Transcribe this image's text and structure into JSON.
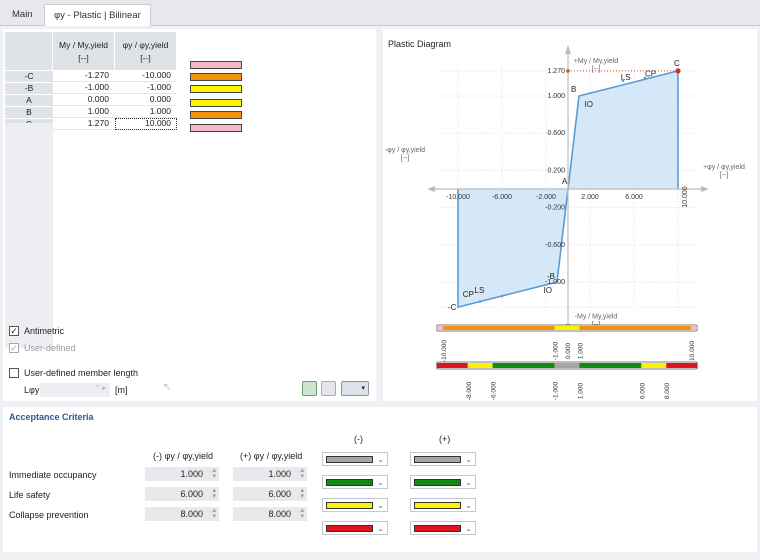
{
  "tabs": [
    "Main",
    "φy - Plastic | Bilinear"
  ],
  "table": {
    "col1_header": "My / My,yield",
    "col2_header": "φy / φy,yield",
    "unit": "[--]",
    "rows": [
      {
        "name": "-C",
        "my": "-1.270",
        "phi": "-10.000"
      },
      {
        "name": "-B",
        "my": "-1.000",
        "phi": "-1.000"
      },
      {
        "name": "A",
        "my": "0.000",
        "phi": "0.000"
      },
      {
        "name": "B",
        "my": "1.000",
        "phi": "1.000"
      },
      {
        "name": "C",
        "my": "1.270",
        "phi": "10.000"
      }
    ]
  },
  "swatches": [
    "#f6b9c9",
    "#f2920e",
    "#fdf403",
    "#fdf403",
    "#f2920e",
    "#f6b9c9"
  ],
  "options": {
    "antimetric": "Antimetric",
    "user_defined": "User-defined",
    "member_length": "User-defined member length",
    "length_symbol": "Lφy",
    "length_unit": "[m]"
  },
  "diagram": {
    "title": "Plastic Diagram",
    "y_axis_pos": "+My / My,yield",
    "y_axis_neg": "-My / My,yield",
    "x_axis_pos": "+φy / φy,yield",
    "x_axis_neg": "-φy / φy,yield",
    "unit": "[--]",
    "x_ticks": [
      "-10.000",
      "-6.000",
      "-2.000",
      "2.000",
      "6.000",
      "10.000"
    ],
    "y_ticks": [
      "1.270",
      "1.000",
      "0.600",
      "0.200",
      "-0.200",
      "-0.600",
      "-1.000"
    ],
    "point_labels": [
      "C",
      "B",
      "A",
      "-B",
      "-C"
    ],
    "zone_labels": [
      "IO",
      "LS",
      "CP"
    ],
    "bar1_labels": [
      "-10.000",
      "-1.000",
      "0.000",
      "1.000",
      "10.000"
    ],
    "bar2_labels": [
      "-8.000",
      "-6.000",
      "-1.000",
      "1.000",
      "6.000",
      "8.000"
    ]
  },
  "chart_data": {
    "type": "line",
    "title": "Plastic Diagram",
    "x": [
      -10.0,
      -10.0,
      -1.0,
      0.0,
      1.0,
      10.0,
      10.0
    ],
    "y": [
      0.0,
      -1.27,
      -1.0,
      0.0,
      1.0,
      1.27,
      0.0
    ],
    "xlim": [
      -12,
      12
    ],
    "ylim": [
      -1.4,
      1.4
    ]
  },
  "acceptance": {
    "title": "Acceptance Criteria",
    "neg_header": "(-)",
    "pos_header": "(+)",
    "neg_col": "(-) φy / φy,yield",
    "pos_col": "(+) φy / φy,yield",
    "rows": [
      {
        "label": "Immediate occupancy",
        "neg": "1.000",
        "pos": "1.000"
      },
      {
        "label": "Life safety",
        "neg": "6.000",
        "pos": "6.000"
      },
      {
        "label": "Collapse prevention",
        "neg": "8.000",
        "pos": "8.000"
      }
    ],
    "colors": [
      "#a6a6a6",
      "#138a14",
      "#fdf403",
      "#e0141f"
    ]
  }
}
